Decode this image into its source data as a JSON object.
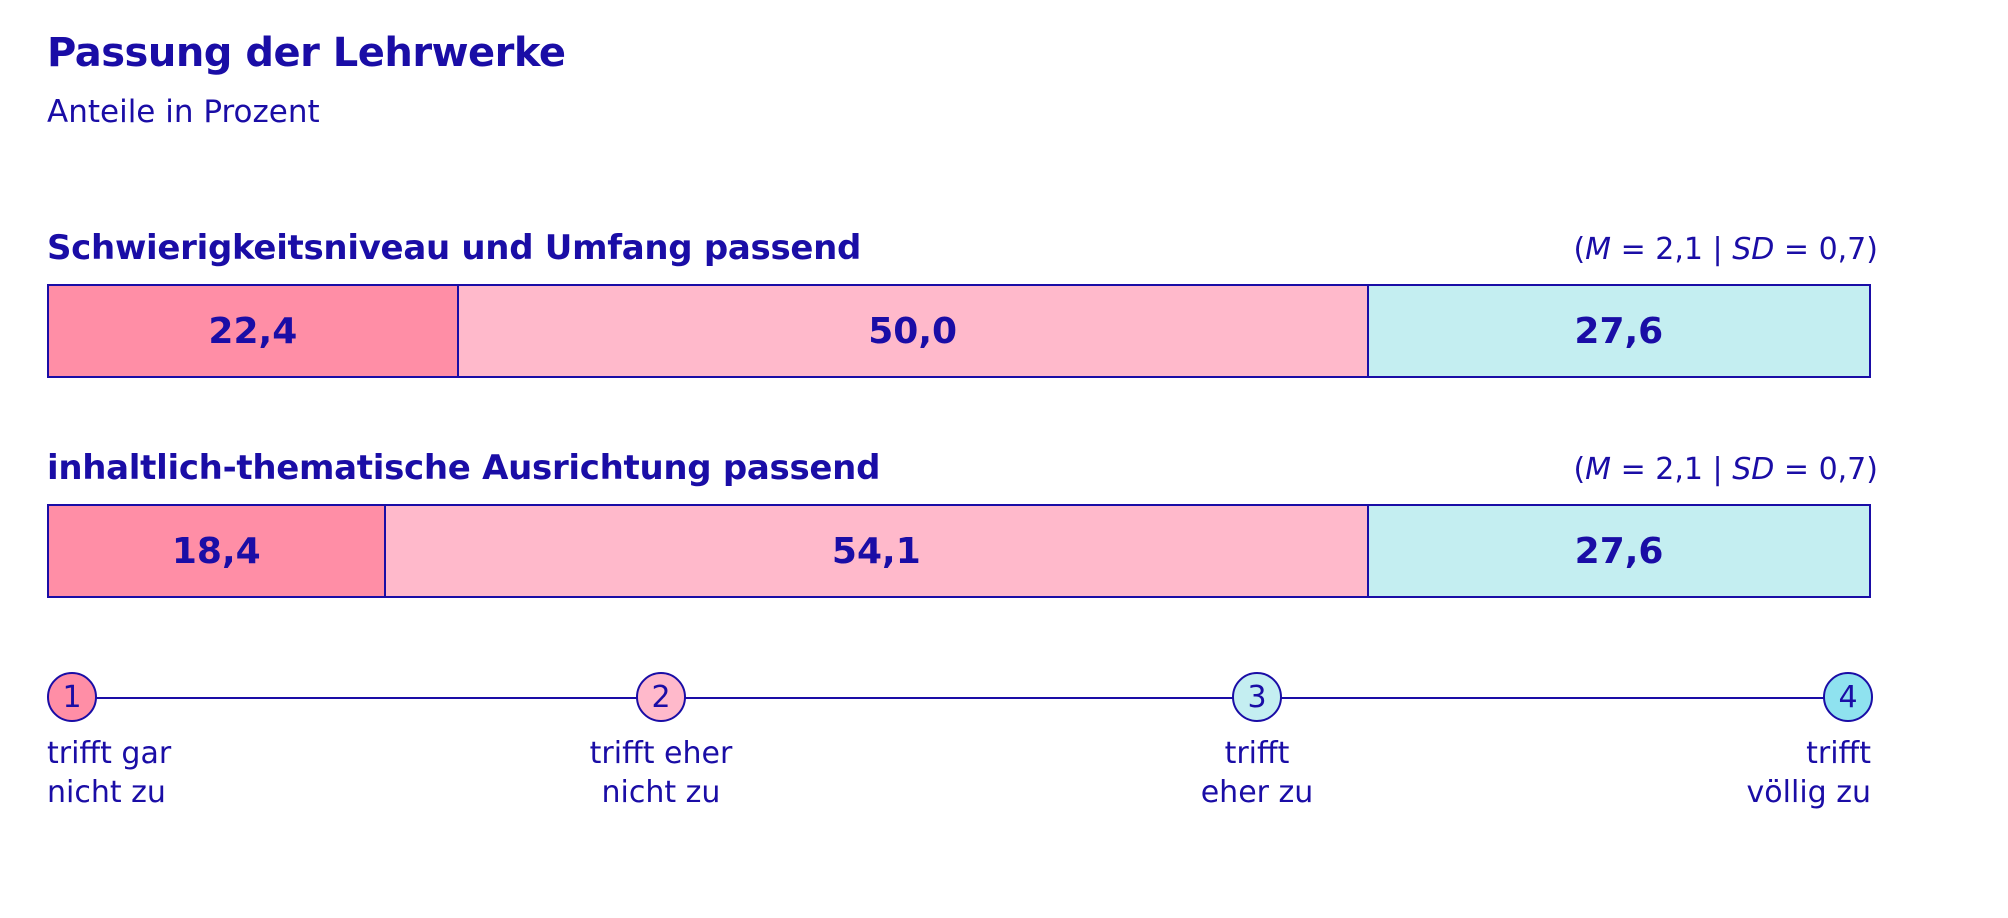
{
  "title": "Passung der Lehrwerke",
  "subtitle": "Anteile in Prozent",
  "colors": {
    "c1": "#ff8ea6",
    "c2": "#ffb9cb",
    "c3": "#c4eef1",
    "c4": "#8fe2ef",
    "ink": "#1a0da6"
  },
  "chart_data": {
    "type": "bar",
    "stacked": true,
    "orientation": "horizontal",
    "xlim": [
      0,
      100
    ],
    "title": "Passung der Lehrwerke",
    "subtitle": "Anteile in Prozent",
    "categories": [
      "Schwierigkeitsniveau und Umfang passend",
      "inhaltlich-thematische Ausrichtung passend"
    ],
    "series": [
      {
        "name": "trifft gar nicht zu",
        "values": [
          22.4,
          18.4
        ],
        "labels": [
          "22,4",
          "18,4"
        ]
      },
      {
        "name": "trifft eher nicht zu",
        "values": [
          50.0,
          54.1
        ],
        "labels": [
          "50,0",
          "54,1"
        ]
      },
      {
        "name": "trifft eher zu",
        "values": [
          27.6,
          27.6
        ],
        "labels": [
          "27,6",
          "27,6"
        ]
      },
      {
        "name": "trifft völlig zu",
        "values": [
          0,
          0
        ],
        "labels": [
          "",
          ""
        ]
      }
    ],
    "stats": [
      {
        "m_label": "M",
        "m_value": "2,1",
        "sd_label": "SD",
        "sd_value": "0,7"
      },
      {
        "m_label": "M",
        "m_value": "2,1",
        "sd_label": "SD",
        "sd_value": "0,7"
      }
    ]
  },
  "scale": [
    {
      "num": "1",
      "line1": "trifft gar",
      "line2": "nicht zu"
    },
    {
      "num": "2",
      "line1": "trifft eher",
      "line2": "nicht zu"
    },
    {
      "num": "3",
      "line1": "trifft",
      "line2": "eher zu"
    },
    {
      "num": "4",
      "line1": "trifft",
      "line2": "völlig zu"
    }
  ]
}
